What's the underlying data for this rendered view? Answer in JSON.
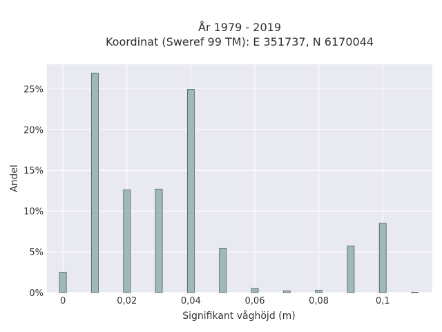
{
  "chart_data": {
    "type": "bar",
    "title": "År 1979 - 2019",
    "subtitle": "Koordinat (Sweref 99 TM): E 351737, N 6170044",
    "xlabel": "Signifikant våghöjd (m)",
    "ylabel": "Andel",
    "x": [
      0,
      0.01,
      0.02,
      0.03,
      0.04,
      0.05,
      0.06,
      0.07,
      0.08,
      0.09,
      0.1,
      0.11
    ],
    "values": [
      2.5,
      26.9,
      12.6,
      12.7,
      24.9,
      5.4,
      0.5,
      0.2,
      0.3,
      5.7,
      8.5,
      0.05
    ],
    "xlim": [
      -0.005,
      0.1155
    ],
    "ylim": [
      0,
      28
    ],
    "x_ticks": [
      0,
      0.02,
      0.04,
      0.06,
      0.08,
      0.1
    ],
    "x_tick_labels": [
      "0",
      "0,02",
      "0,04",
      "0,06",
      "0,08",
      "0,1"
    ],
    "y_ticks": [
      0,
      5,
      10,
      15,
      20,
      25
    ],
    "y_tick_labels": [
      "0%",
      "5%",
      "10%",
      "15%",
      "20%",
      "25%"
    ],
    "grid": true,
    "colors": {
      "bar_fill": "#9fb8b9",
      "bar_stroke": "#4d5a5a",
      "plot_bg": "#e9e9f2",
      "grid": "#ffffff"
    }
  }
}
